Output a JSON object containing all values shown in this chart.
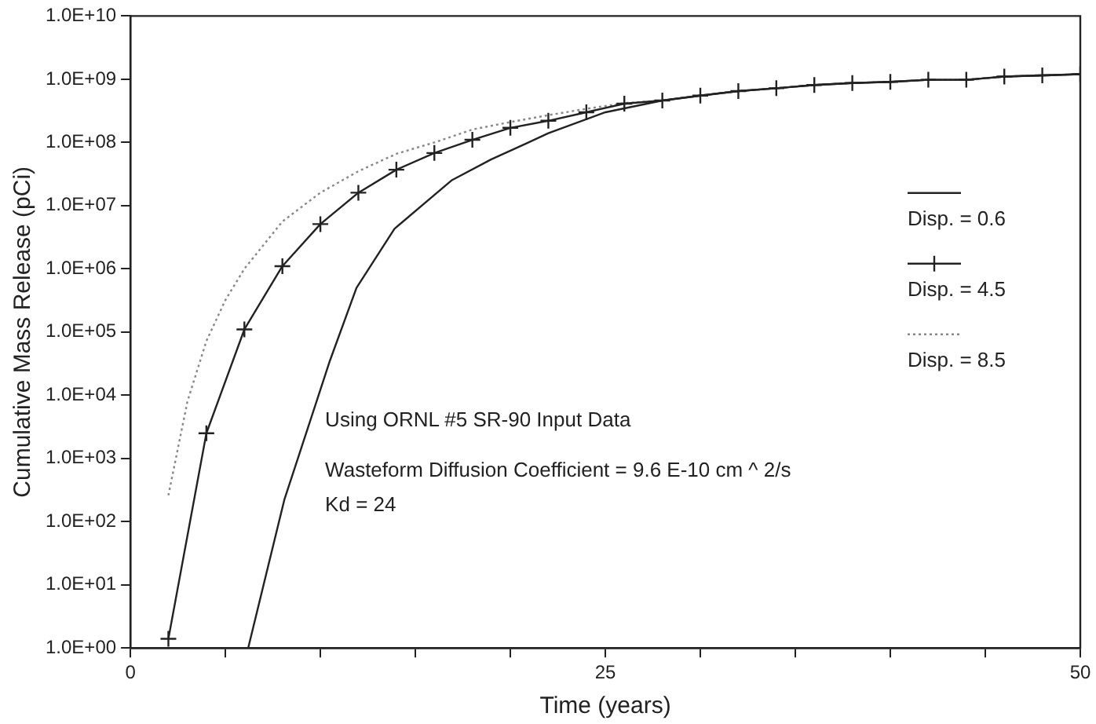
{
  "chart_data": {
    "type": "line",
    "xlabel": "Time (years)",
    "ylabel": "Cumulative Mass Release (pCi)",
    "xlim": [
      0,
      50
    ],
    "xticks": [
      0,
      {
        "value": 5,
        "label": null
      },
      {
        "value": 10,
        "label": null
      },
      {
        "value": 15,
        "label": null
      },
      {
        "value": 20,
        "label": null
      },
      25,
      {
        "value": 30,
        "label": null
      },
      {
        "value": 35,
        "label": null
      },
      {
        "value": 40,
        "label": null
      },
      {
        "value": 45,
        "label": null
      },
      50
    ],
    "ylim": [
      1,
      10000000000.0
    ],
    "log": "y",
    "yticks": [
      {
        "value": 1,
        "label": "1.0E+00"
      },
      {
        "value": 10.0,
        "label": "1.0E+01"
      },
      {
        "value": 100.0,
        "label": "1.0E+02"
      },
      {
        "value": 1000.0,
        "label": "1.0E+03"
      },
      {
        "value": 10000.0,
        "label": "1.0E+04"
      },
      {
        "value": 100000.0,
        "label": "1.0E+05"
      },
      {
        "value": 1000000.0,
        "label": "1.0E+06"
      },
      {
        "value": 10000000.0,
        "label": "1.0E+07"
      },
      {
        "value": 100000000.0,
        "label": "1.0E+08"
      },
      {
        "value": 1000000000.0,
        "label": "1.0E+09"
      },
      {
        "value": 10000000000.0,
        "label": "1.0E+10"
      }
    ],
    "grid": false,
    "legend": "right",
    "series": [
      {
        "name": "Disp. = 0.6",
        "color": "#222222",
        "line_style": "solid",
        "x": [
          6.2,
          8.1,
          10.5,
          11.9,
          13.9,
          16.9,
          19,
          20.8,
          22,
          25,
          28,
          30,
          32,
          34,
          36,
          38,
          40,
          42,
          44,
          46,
          48,
          50
        ],
        "values": [
          1,
          220.0,
          35000.0,
          500000.0,
          4300000.0,
          25000000.0,
          54000000.0,
          95000000.0,
          140000000.0,
          300000000.0,
          460000000.0,
          550000000.0,
          650000000.0,
          720000000.0,
          810000000.0,
          870000000.0,
          910000000.0,
          980000000.0,
          980000000.0,
          1100000000.0,
          1150000000.0,
          1200000000.0
        ]
      },
      {
        "name": "Disp. = 4.5",
        "color": "#222222",
        "marker": "cross",
        "line_style": "solid",
        "x": [
          2,
          4,
          6,
          8,
          10,
          12,
          14,
          16,
          18,
          20,
          22,
          24,
          26,
          28,
          30,
          32,
          34,
          36,
          38,
          40,
          42,
          44,
          46,
          48,
          50
        ],
        "values": [
          1.4,
          2500.0,
          110000.0,
          1100000.0,
          5100000.0,
          16000000.0,
          37000000.0,
          68000000.0,
          110000000.0,
          170000000.0,
          220000000.0,
          300000000.0,
          410000000.0,
          460000000.0,
          550000000.0,
          650000000.0,
          720000000.0,
          810000000.0,
          870000000.0,
          910000000.0,
          980000000.0,
          980000000.0,
          1100000000.0,
          1150000000.0,
          1200000000.0
        ]
      },
      {
        "name": "Disp. = 8.5",
        "color": "#888888",
        "line_style": "dotted",
        "x": [
          2,
          3,
          4,
          5,
          6,
          8,
          10,
          12,
          14,
          16,
          18,
          20,
          22,
          24,
          26,
          28,
          30,
          32,
          34,
          36,
          38,
          40,
          42,
          44,
          46,
          48,
          50
        ],
        "values": [
          260.0,
          7900.0,
          72000.0,
          320000.0,
          1000000.0,
          5600000.0,
          16000000.0,
          35000000.0,
          66000000.0,
          100000000.0,
          160000000.0,
          210000000.0,
          270000000.0,
          340000000.0,
          420000000.0,
          460000000.0,
          550000000.0,
          650000000.0,
          720000000.0,
          810000000.0,
          870000000.0,
          910000000.0,
          980000000.0,
          980000000.0,
          1100000000.0,
          1150000000.0,
          1200000000.0
        ]
      }
    ],
    "annotations": [
      "Using ORNL #5 SR-90 Input Data",
      "Wasteform Diffusion Coefficient = 9.6 E-10 cm ^ 2/s",
      "Kd = 24"
    ]
  }
}
